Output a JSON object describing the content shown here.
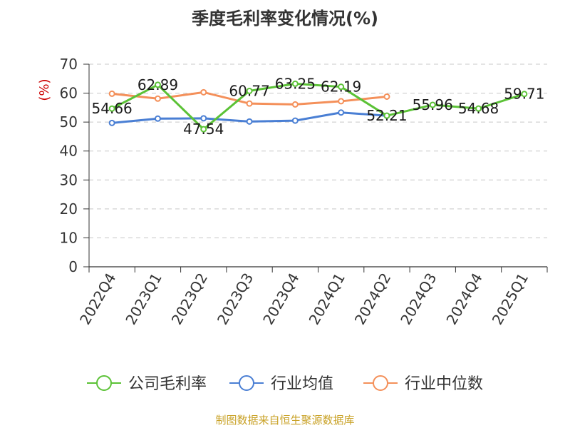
{
  "chart_data": {
    "type": "line",
    "title": "季度毛利率变化情况(%)",
    "ylabel": "(%)",
    "xlabel": "",
    "ylim": [
      0,
      70
    ],
    "yticks": [
      0,
      10,
      20,
      30,
      40,
      50,
      60,
      70
    ],
    "grid": true,
    "legend_position": "bottom",
    "categories": [
      "2022Q4",
      "2023Q1",
      "2023Q2",
      "2023Q3",
      "2023Q4",
      "2024Q1",
      "2024Q2",
      "2024Q3",
      "2024Q4",
      "2025Q1"
    ],
    "series": [
      {
        "name": "公司毛利率",
        "color": "#5bc236",
        "values": [
          54.66,
          62.89,
          47.54,
          60.77,
          63.25,
          62.19,
          52.21,
          55.96,
          54.68,
          59.71
        ],
        "labels": [
          "54.66",
          "62.89",
          "47.54",
          "60.77",
          "63.25",
          "62.19",
          "52.21",
          "55.96",
          "54.68",
          "59.71"
        ]
      },
      {
        "name": "行业均值",
        "color": "#4a7fd4",
        "values": [
          49.7,
          51.2,
          51.3,
          50.2,
          50.5,
          53.3,
          52.2,
          null,
          null,
          null
        ]
      },
      {
        "name": "行业中位数",
        "color": "#f4905a",
        "values": [
          59.8,
          58.1,
          60.3,
          56.4,
          56.1,
          57.2,
          58.8,
          null,
          null,
          null
        ]
      }
    ]
  },
  "source": "制图数据来自恒生聚源数据库"
}
